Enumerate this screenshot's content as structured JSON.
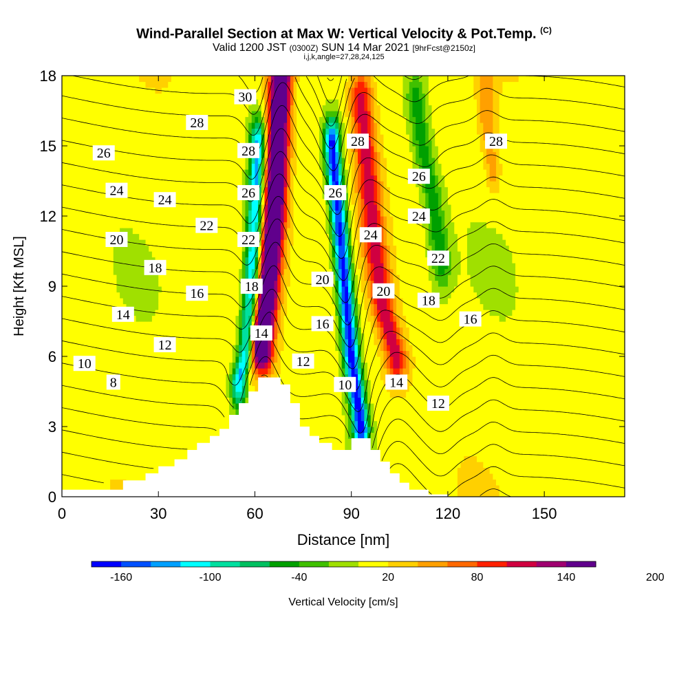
{
  "title": {
    "main": "Wind-Parallel Section at Max W: Vertical Velocity & Pot.Temp.",
    "copyright": "(C)",
    "valid_a": "Valid 1200 JST",
    "valid_b": "(0300Z)",
    "valid_c": "SUN 14 Mar 2021",
    "valid_d": "[9hrFcst@2150z]",
    "indices": "i,j,k,angle=27,28,24,125"
  },
  "chart_data": {
    "type": "heatmap",
    "xlabel": "Distance [nm]",
    "ylabel": "Height [Kft MSL]",
    "xlim": [
      0,
      175
    ],
    "ylim": [
      0,
      18
    ],
    "x_ticks": [
      0,
      30,
      60,
      90,
      120,
      150
    ],
    "y_ticks": [
      0,
      3,
      6,
      9,
      12,
      15,
      18
    ],
    "colorbar": {
      "label": "Vertical Velocity [cm/s]",
      "tick_labels": [
        "-160",
        "-100",
        "-40",
        "20",
        "80",
        "140",
        "200"
      ],
      "tick_values": [
        -160,
        -100,
        -40,
        20,
        80,
        140,
        200
      ],
      "min": -180,
      "step": 20,
      "colors": [
        "#0000ff",
        "#0050ff",
        "#00a0ff",
        "#00ffff",
        "#00e0a0",
        "#00c060",
        "#00a000",
        "#40c000",
        "#a0e000",
        "#ffff00",
        "#ffd000",
        "#ffa000",
        "#ff6800",
        "#ff2000",
        "#d00040",
        "#a00070",
        "#60008c"
      ]
    },
    "terrain_profile": {
      "x": [
        0,
        19,
        26,
        30,
        35,
        39,
        42,
        46,
        49,
        52,
        55,
        58,
        61,
        65,
        68,
        71,
        74,
        77,
        80,
        84,
        90,
        96,
        99,
        102,
        105,
        108,
        114,
        120,
        175
      ],
      "height": [
        0.3,
        0.7,
        1.0,
        1.3,
        1.6,
        2.0,
        2.3,
        2.6,
        2.9,
        3.5,
        4.0,
        4.5,
        5.1,
        5.1,
        4.8,
        4.0,
        3.0,
        2.6,
        2.3,
        2.0,
        2.5,
        2.0,
        1.5,
        1.0,
        0.6,
        0.3,
        0.1,
        0.0,
        0.0
      ]
    },
    "vertical_velocity_features": [
      {
        "name": "updraft",
        "x": [
          68,
          67,
          66,
          64,
          62
        ],
        "height": [
          18,
          15,
          12,
          9,
          6.5
        ],
        "half_width_nm": 3.5,
        "peak_cm_s": 200
      },
      {
        "name": "downdraft",
        "x": [
          61,
          60,
          59,
          57,
          55
        ],
        "height": [
          15,
          12,
          9,
          6,
          5
        ],
        "half_width_nm": 2.5,
        "peak_cm_s": -140
      },
      {
        "name": "downdraft",
        "x": [
          84,
          86,
          88,
          90,
          93
        ],
        "height": [
          15,
          12,
          9,
          6,
          3
        ],
        "half_width_nm": 2.5,
        "peak_cm_s": -180
      },
      {
        "name": "updraft",
        "x": [
          93,
          95,
          97,
          100,
          104
        ],
        "height": [
          17,
          14,
          11,
          8,
          6
        ],
        "half_width_nm": 3.5,
        "peak_cm_s": 100
      },
      {
        "name": "updraft",
        "x": [
          132,
          132,
          133,
          134
        ],
        "height": [
          18,
          16,
          15,
          14
        ],
        "half_width_nm": 2.5,
        "peak_cm_s": 40
      },
      {
        "name": "downdraft",
        "x": [
          110,
          112,
          115,
          118
        ],
        "height": [
          17,
          15,
          13,
          10
        ],
        "half_width_nm": 3,
        "peak_cm_s": -60
      }
    ],
    "theta_contour_labels": [
      {
        "text": "30",
        "x": 57,
        "y": 17.1
      },
      {
        "text": "28",
        "x": 42,
        "y": 16.0
      },
      {
        "text": "28",
        "x": 58,
        "y": 14.8
      },
      {
        "text": "28",
        "x": 92,
        "y": 15.2
      },
      {
        "text": "28",
        "x": 135,
        "y": 15.2
      },
      {
        "text": "26",
        "x": 13,
        "y": 14.7
      },
      {
        "text": "26",
        "x": 58,
        "y": 13.0
      },
      {
        "text": "26",
        "x": 85,
        "y": 13.0
      },
      {
        "text": "26",
        "x": 111,
        "y": 13.7
      },
      {
        "text": "24",
        "x": 17,
        "y": 13.1
      },
      {
        "text": "24",
        "x": 32,
        "y": 12.7
      },
      {
        "text": "24",
        "x": 96,
        "y": 11.2
      },
      {
        "text": "24",
        "x": 111,
        "y": 12.0
      },
      {
        "text": "22",
        "x": 45,
        "y": 11.6
      },
      {
        "text": "22",
        "x": 58,
        "y": 11.0
      },
      {
        "text": "22",
        "x": 117,
        "y": 10.2
      },
      {
        "text": "20",
        "x": 17,
        "y": 11.0
      },
      {
        "text": "20",
        "x": 81,
        "y": 9.3
      },
      {
        "text": "20",
        "x": 100,
        "y": 8.8
      },
      {
        "text": "18",
        "x": 29,
        "y": 9.8
      },
      {
        "text": "18",
        "x": 59,
        "y": 9.0
      },
      {
        "text": "18",
        "x": 114,
        "y": 8.4
      },
      {
        "text": "16",
        "x": 42,
        "y": 8.7
      },
      {
        "text": "16",
        "x": 81,
        "y": 7.4
      },
      {
        "text": "16",
        "x": 127,
        "y": 7.6
      },
      {
        "text": "14",
        "x": 19,
        "y": 7.8
      },
      {
        "text": "14",
        "x": 62,
        "y": 7.0
      },
      {
        "text": "14",
        "x": 104,
        "y": 4.9
      },
      {
        "text": "12",
        "x": 32,
        "y": 6.5
      },
      {
        "text": "12",
        "x": 75,
        "y": 5.8
      },
      {
        "text": "12",
        "x": 117,
        "y": 4.0
      },
      {
        "text": "10",
        "x": 7,
        "y": 5.7
      },
      {
        "text": "10",
        "x": 88,
        "y": 4.8
      },
      {
        "text": "8",
        "x": 16,
        "y": 4.9
      }
    ]
  }
}
